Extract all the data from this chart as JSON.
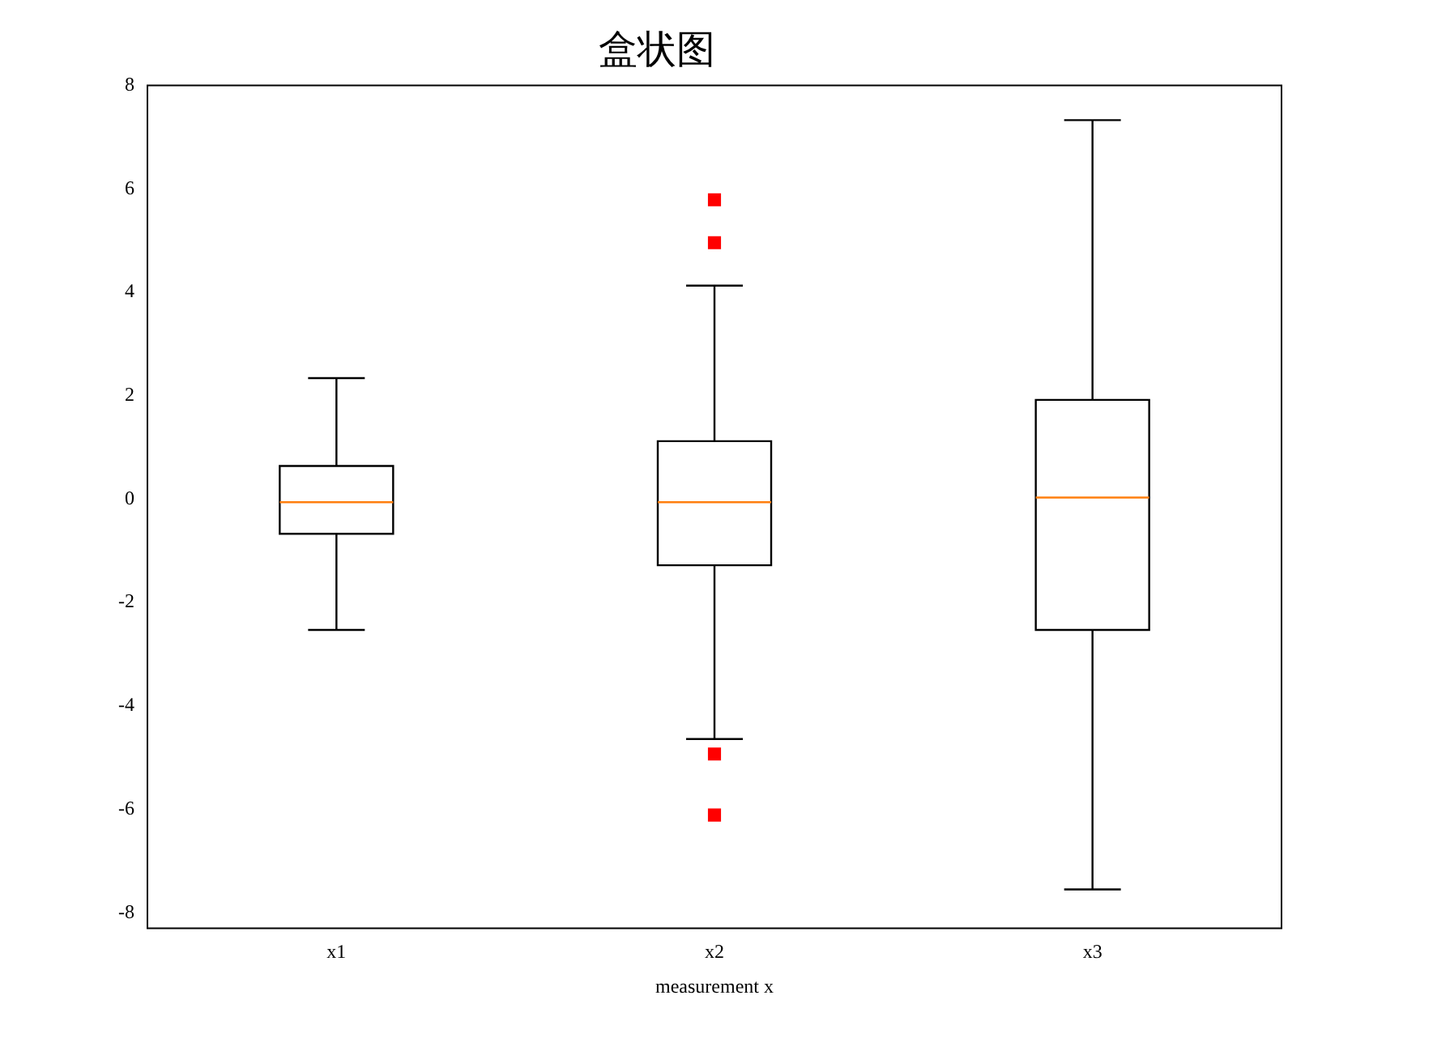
{
  "chart_data": {
    "type": "box",
    "title": "盒状图",
    "xlabel": "measurement x",
    "categories": [
      "x1",
      "x2",
      "x3"
    ],
    "series": [
      {
        "color": "#000000",
        "boxes": [
          {
            "low": -2.53,
            "q1": -0.67,
            "median": -0.06,
            "q3": 0.64,
            "high": 2.34
          },
          {
            "low": -4.64,
            "q1": -1.28,
            "median": -0.06,
            "q3": 1.12,
            "high": 4.13,
            "outliers": [
              5.79,
              4.96,
              -4.93,
              -6.11
            ]
          },
          {
            "low": -7.55,
            "q1": -2.53,
            "median": 0.03,
            "q3": 1.92,
            "high": 7.33
          }
        ]
      }
    ],
    "ylim": [
      -8.3,
      8
    ],
    "yticks": [
      -8,
      -6,
      -4,
      -2,
      0,
      2,
      4,
      6,
      8
    ],
    "grid": false,
    "legend": false,
    "marker": "square"
  }
}
